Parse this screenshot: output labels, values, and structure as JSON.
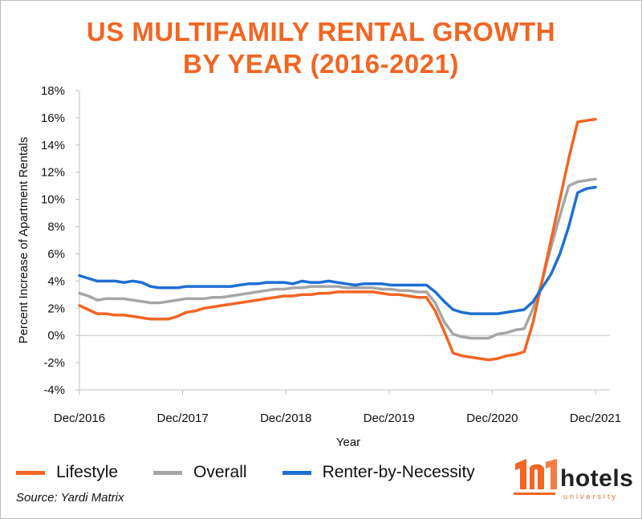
{
  "title_line1": "US MULTIFAMILY RENTAL GROWTH",
  "title_line2": "BY YEAR (2016-2021)",
  "source": "Source: Yardi Matrix",
  "logo": {
    "word": "hotels",
    "sub": "university",
    "brand_color": "#f26522"
  },
  "chart_data": {
    "type": "line",
    "title": "US MULTIFAMILY RENTAL GROWTH BY YEAR (2016-2021)",
    "xlabel": "Year",
    "ylabel": "Percent Increase of Apartment Rentals",
    "ylim": [
      -4,
      18
    ],
    "y_ticks": [
      -4,
      -2,
      0,
      2,
      4,
      6,
      8,
      10,
      12,
      14,
      16,
      18
    ],
    "y_tick_labels": [
      "-4%",
      "-2%",
      "0%",
      "2%",
      "4%",
      "6%",
      "8%",
      "10%",
      "12%",
      "14%",
      "16%",
      "18%"
    ],
    "x_ticks": [
      "Dec/2016",
      "Dec/2017",
      "Dec/2018",
      "Dec/2019",
      "Dec/2020",
      "Dec/2021"
    ],
    "x_unit": "months since Dec/2016",
    "grid": false,
    "legend_position": "bottom",
    "series": [
      {
        "name": "Lifestyle",
        "color": "#f26522",
        "values": [
          2.2,
          1.9,
          1.6,
          1.6,
          1.5,
          1.5,
          1.4,
          1.3,
          1.2,
          1.2,
          1.2,
          1.4,
          1.7,
          1.8,
          2.0,
          2.1,
          2.2,
          2.3,
          2.4,
          2.5,
          2.6,
          2.7,
          2.8,
          2.9,
          2.9,
          3.0,
          3.0,
          3.1,
          3.1,
          3.2,
          3.2,
          3.2,
          3.2,
          3.2,
          3.1,
          3.0,
          3.0,
          2.9,
          2.8,
          2.8,
          1.8,
          0.3,
          -1.3,
          -1.5,
          -1.6,
          -1.7,
          -1.8,
          -1.7,
          -1.5,
          -1.4,
          -1.2,
          1.0,
          4.0,
          7.0,
          10.0,
          13.0,
          15.7,
          15.8,
          15.9
        ]
      },
      {
        "name": "Overall",
        "color": "#a6a6a6",
        "values": [
          3.1,
          2.9,
          2.6,
          2.7,
          2.7,
          2.7,
          2.6,
          2.5,
          2.4,
          2.4,
          2.5,
          2.6,
          2.7,
          2.7,
          2.7,
          2.8,
          2.8,
          2.9,
          3.0,
          3.1,
          3.2,
          3.3,
          3.4,
          3.4,
          3.5,
          3.5,
          3.6,
          3.6,
          3.6,
          3.6,
          3.5,
          3.5,
          3.5,
          3.5,
          3.4,
          3.4,
          3.3,
          3.3,
          3.2,
          3.2,
          2.4,
          1.0,
          0.1,
          -0.1,
          -0.2,
          -0.2,
          -0.2,
          0.1,
          0.2,
          0.4,
          0.5,
          2.0,
          4.0,
          6.5,
          8.8,
          11.0,
          11.3,
          11.4,
          11.5
        ]
      },
      {
        "name": "Renter-by-Necessity",
        "color": "#1f6fd1",
        "values": [
          4.4,
          4.2,
          4.0,
          4.0,
          4.0,
          3.9,
          4.0,
          3.9,
          3.6,
          3.5,
          3.5,
          3.5,
          3.6,
          3.6,
          3.6,
          3.6,
          3.6,
          3.6,
          3.7,
          3.8,
          3.8,
          3.9,
          3.9,
          3.9,
          3.8,
          4.0,
          3.9,
          3.9,
          4.0,
          3.9,
          3.8,
          3.7,
          3.8,
          3.8,
          3.8,
          3.7,
          3.7,
          3.7,
          3.7,
          3.7,
          3.2,
          2.5,
          1.9,
          1.7,
          1.6,
          1.6,
          1.6,
          1.6,
          1.7,
          1.8,
          1.9,
          2.5,
          3.5,
          4.5,
          6.0,
          8.0,
          10.5,
          10.8,
          10.9
        ]
      }
    ]
  }
}
